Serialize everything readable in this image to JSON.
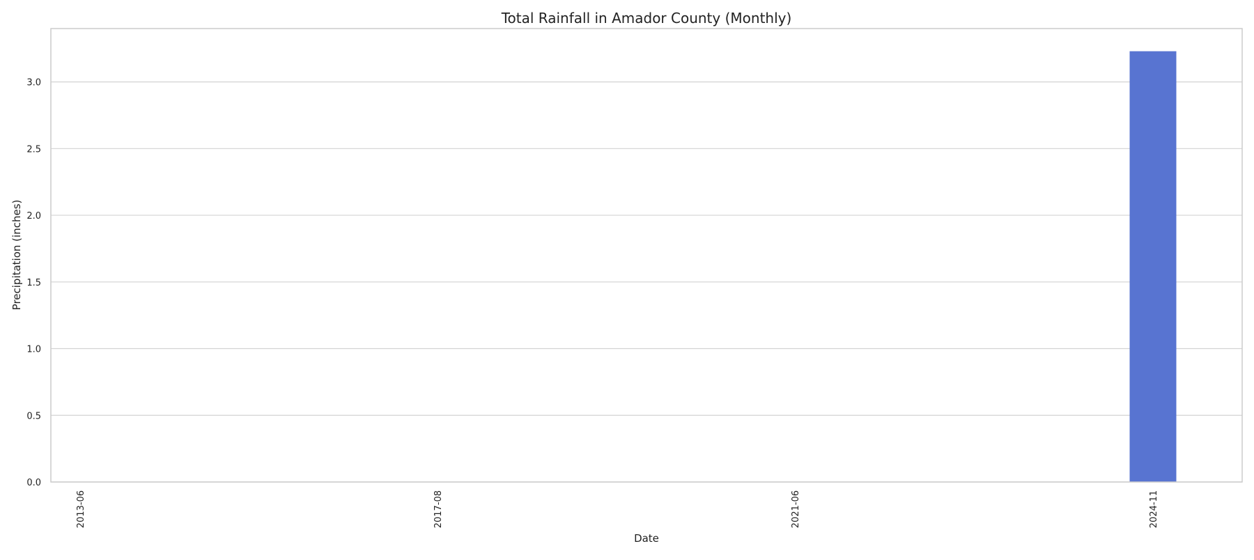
{
  "chart_data": {
    "type": "bar",
    "title": "Total Rainfall in Amador County (Monthly)",
    "xlabel": "Date",
    "ylabel": "Precipitation (inches)",
    "categories": [
      "2013-06",
      "2017-08",
      "2021-06",
      "2024-11"
    ],
    "values": [
      0.0,
      0.0,
      0.0,
      3.23
    ],
    "ylim": [
      0,
      3.4
    ],
    "yticks": [
      0.0,
      0.5,
      1.0,
      1.5,
      2.0,
      2.5,
      3.0
    ],
    "ytick_labels": [
      "0.0",
      "0.5",
      "1.0",
      "1.5",
      "2.0",
      "2.5",
      "3.0"
    ],
    "grid": "horizontal",
    "legend": "none",
    "colors": {
      "bar": "#5874d1",
      "grid": "#d3d3d3",
      "axes_frame": "#cccccc"
    }
  }
}
